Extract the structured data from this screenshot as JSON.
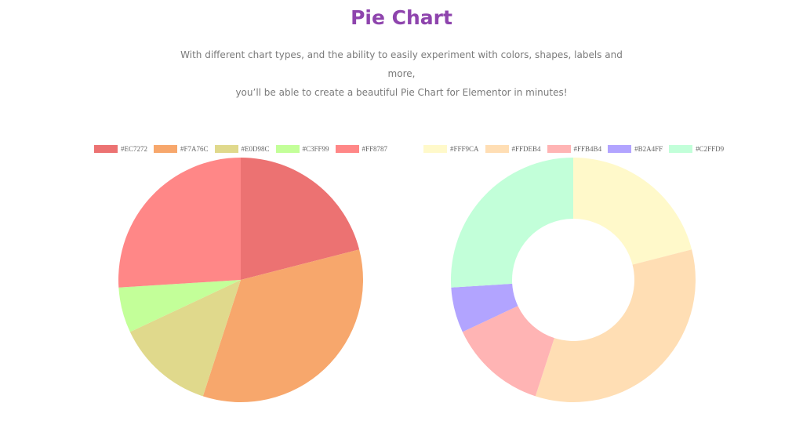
{
  "header": {
    "title": "Pie Chart",
    "subtitle_line1": "With different chart types, and the ability to easily experiment with colors, shapes, labels and more,",
    "subtitle_line2": "you’ll be able to create a beautiful Pie Chart for Elementor in minutes!"
  },
  "chart_data": [
    {
      "type": "pie",
      "title": "",
      "legend_position": "top",
      "categories": [
        "#EC7272",
        "#F7A76C",
        "#E0D98C",
        "#C3FF99",
        "#FF8787"
      ],
      "values": [
        21,
        34,
        13,
        6,
        26
      ],
      "colors": [
        "#EC7272",
        "#F7A76C",
        "#E0D98C",
        "#C3FF99",
        "#FF8787"
      ]
    },
    {
      "type": "pie",
      "variant": "doughnut",
      "title": "",
      "legend_position": "top",
      "categories": [
        "#FFF9CA",
        "#FFDEB4",
        "#FFB4B4",
        "#B2A4FF",
        "#C2FFD9"
      ],
      "values": [
        21,
        34,
        13,
        6,
        26
      ],
      "colors": [
        "#FFF9CA",
        "#FFDEB4",
        "#FFB4B4",
        "#B2A4FF",
        "#C2FFD9"
      ]
    }
  ]
}
